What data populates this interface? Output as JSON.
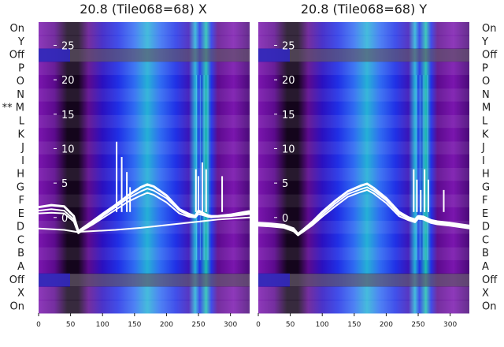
{
  "chart_data": [
    {
      "type": "heatmap",
      "title": "20.8 (Tile068=68) X",
      "row_labels": [
        "On",
        "Y",
        "Off",
        "P",
        "O",
        "N",
        "M",
        "L",
        "K",
        "J",
        "I",
        "H",
        "G",
        "F",
        "E",
        "D",
        "C",
        "B",
        "A",
        "Off",
        "X",
        "On"
      ],
      "marked_row_label": "** M",
      "x_ticks": [
        0,
        50,
        100,
        150,
        200,
        250,
        300
      ],
      "xlim": [
        0,
        330
      ],
      "inner_y_ticks": [
        25,
        20,
        15,
        10,
        5,
        0
      ],
      "inner_y_range": [
        -3,
        27
      ],
      "series": [
        {
          "name": "",
          "x": [
            0,
            20,
            40,
            55,
            62,
            70,
            85,
            100,
            120,
            140,
            160,
            170,
            180,
            200,
            220,
            235,
            245,
            250,
            258,
            265,
            270,
            280,
            300,
            330
          ],
          "y": [
            1.5,
            1.8,
            1.6,
            0.2,
            -2.0,
            -1.5,
            -0.5,
            0.5,
            1.8,
            3.2,
            4.4,
            4.8,
            4.5,
            3.2,
            1.2,
            0.5,
            0.2,
            1.0,
            0.6,
            0.3,
            0.2,
            0.2,
            0.4,
            0.9
          ]
        },
        {
          "name": "",
          "x": [
            0,
            20,
            40,
            55,
            62,
            70,
            85,
            100,
            120,
            140,
            160,
            170,
            180,
            200,
            220,
            235,
            245,
            250,
            258,
            265,
            270,
            280,
            300,
            330
          ],
          "y": [
            1.0,
            1.2,
            1.0,
            -0.3,
            -2.2,
            -1.6,
            -0.8,
            0.2,
            1.5,
            2.8,
            3.8,
            4.2,
            3.9,
            2.8,
            1.0,
            0.3,
            0.1,
            0.8,
            0.5,
            0.2,
            0.1,
            0.1,
            0.3,
            0.7
          ]
        },
        {
          "name": "",
          "x": [
            0,
            20,
            40,
            55,
            62,
            70,
            85,
            100,
            120,
            140,
            160,
            170,
            180,
            200,
            220,
            235,
            245,
            250,
            258,
            265,
            270,
            280,
            300,
            330
          ],
          "y": [
            0.6,
            0.7,
            0.6,
            -0.6,
            -2.3,
            -1.8,
            -1.0,
            -0.1,
            1.1,
            2.3,
            3.2,
            3.6,
            3.3,
            2.2,
            0.6,
            0.1,
            0.0,
            0.5,
            0.3,
            0.1,
            0.0,
            0.1,
            0.2,
            0.5
          ]
        },
        {
          "name": "",
          "x": [
            0,
            40,
            60,
            80,
            120,
            160,
            200,
            240,
            280,
            330
          ],
          "y": [
            -1.6,
            -1.8,
            -2.1,
            -2.0,
            -1.8,
            -1.5,
            -1.1,
            -0.7,
            -0.3,
            0.0
          ]
        }
      ]
    },
    {
      "type": "heatmap",
      "title": "20.8 (Tile068=68) Y",
      "row_labels": [
        "On",
        "Y",
        "Off",
        "P",
        "O",
        "N",
        "M",
        "L",
        "K",
        "J",
        "I",
        "H",
        "G",
        "F",
        "E",
        "D",
        "C",
        "B",
        "A",
        "Off",
        "X",
        "On"
      ],
      "x_ticks": [
        0,
        50,
        100,
        150,
        200,
        250,
        300
      ],
      "xlim": [
        0,
        330
      ],
      "inner_y_ticks": [
        25,
        20,
        15,
        10,
        5,
        0
      ],
      "inner_y_range": [
        -3,
        27
      ],
      "series": [
        {
          "name": "",
          "x": [
            0,
            20,
            40,
            55,
            62,
            70,
            85,
            100,
            120,
            140,
            160,
            170,
            180,
            200,
            220,
            235,
            245,
            250,
            258,
            265,
            270,
            280,
            300,
            330
          ],
          "y": [
            -0.8,
            -0.9,
            -1.1,
            -1.6,
            -2.4,
            -1.8,
            -0.6,
            0.8,
            2.4,
            3.8,
            4.6,
            4.9,
            4.3,
            2.8,
            0.8,
            0.0,
            -0.3,
            0.2,
            0.1,
            -0.2,
            -0.4,
            -0.6,
            -0.8,
            -1.2
          ]
        },
        {
          "name": "",
          "x": [
            0,
            20,
            40,
            55,
            62,
            70,
            85,
            100,
            120,
            140,
            160,
            170,
            180,
            200,
            220,
            235,
            245,
            250,
            258,
            265,
            270,
            280,
            300,
            330
          ],
          "y": [
            -1.0,
            -1.1,
            -1.3,
            -1.8,
            -2.5,
            -2.0,
            -0.9,
            0.4,
            2.0,
            3.4,
            4.1,
            4.4,
            3.9,
            2.5,
            0.5,
            -0.2,
            -0.5,
            0.0,
            -0.1,
            -0.4,
            -0.6,
            -0.8,
            -1.0,
            -1.4
          ]
        },
        {
          "name": "",
          "x": [
            0,
            20,
            40,
            55,
            62,
            70,
            85,
            100,
            120,
            140,
            160,
            170,
            180,
            200,
            220,
            235,
            245,
            250,
            258,
            265,
            270,
            280,
            300,
            330
          ],
          "y": [
            -1.2,
            -1.3,
            -1.5,
            -2.0,
            -2.6,
            -2.1,
            -1.1,
            0.1,
            1.6,
            3.0,
            3.7,
            4.0,
            3.5,
            2.1,
            0.2,
            -0.4,
            -0.7,
            -0.2,
            -0.3,
            -0.6,
            -0.8,
            -1.0,
            -1.2,
            -1.6
          ]
        }
      ]
    }
  ],
  "colors": {
    "dark_band": "#14051c",
    "purple": "#5c0a8e",
    "violet": "#7a16ae",
    "blue": "#2030e6",
    "bright_blue": "#2f6cf2",
    "cyan": "#25b0d6",
    "teal": "#1fc0b0",
    "trace": "#ffffff"
  }
}
